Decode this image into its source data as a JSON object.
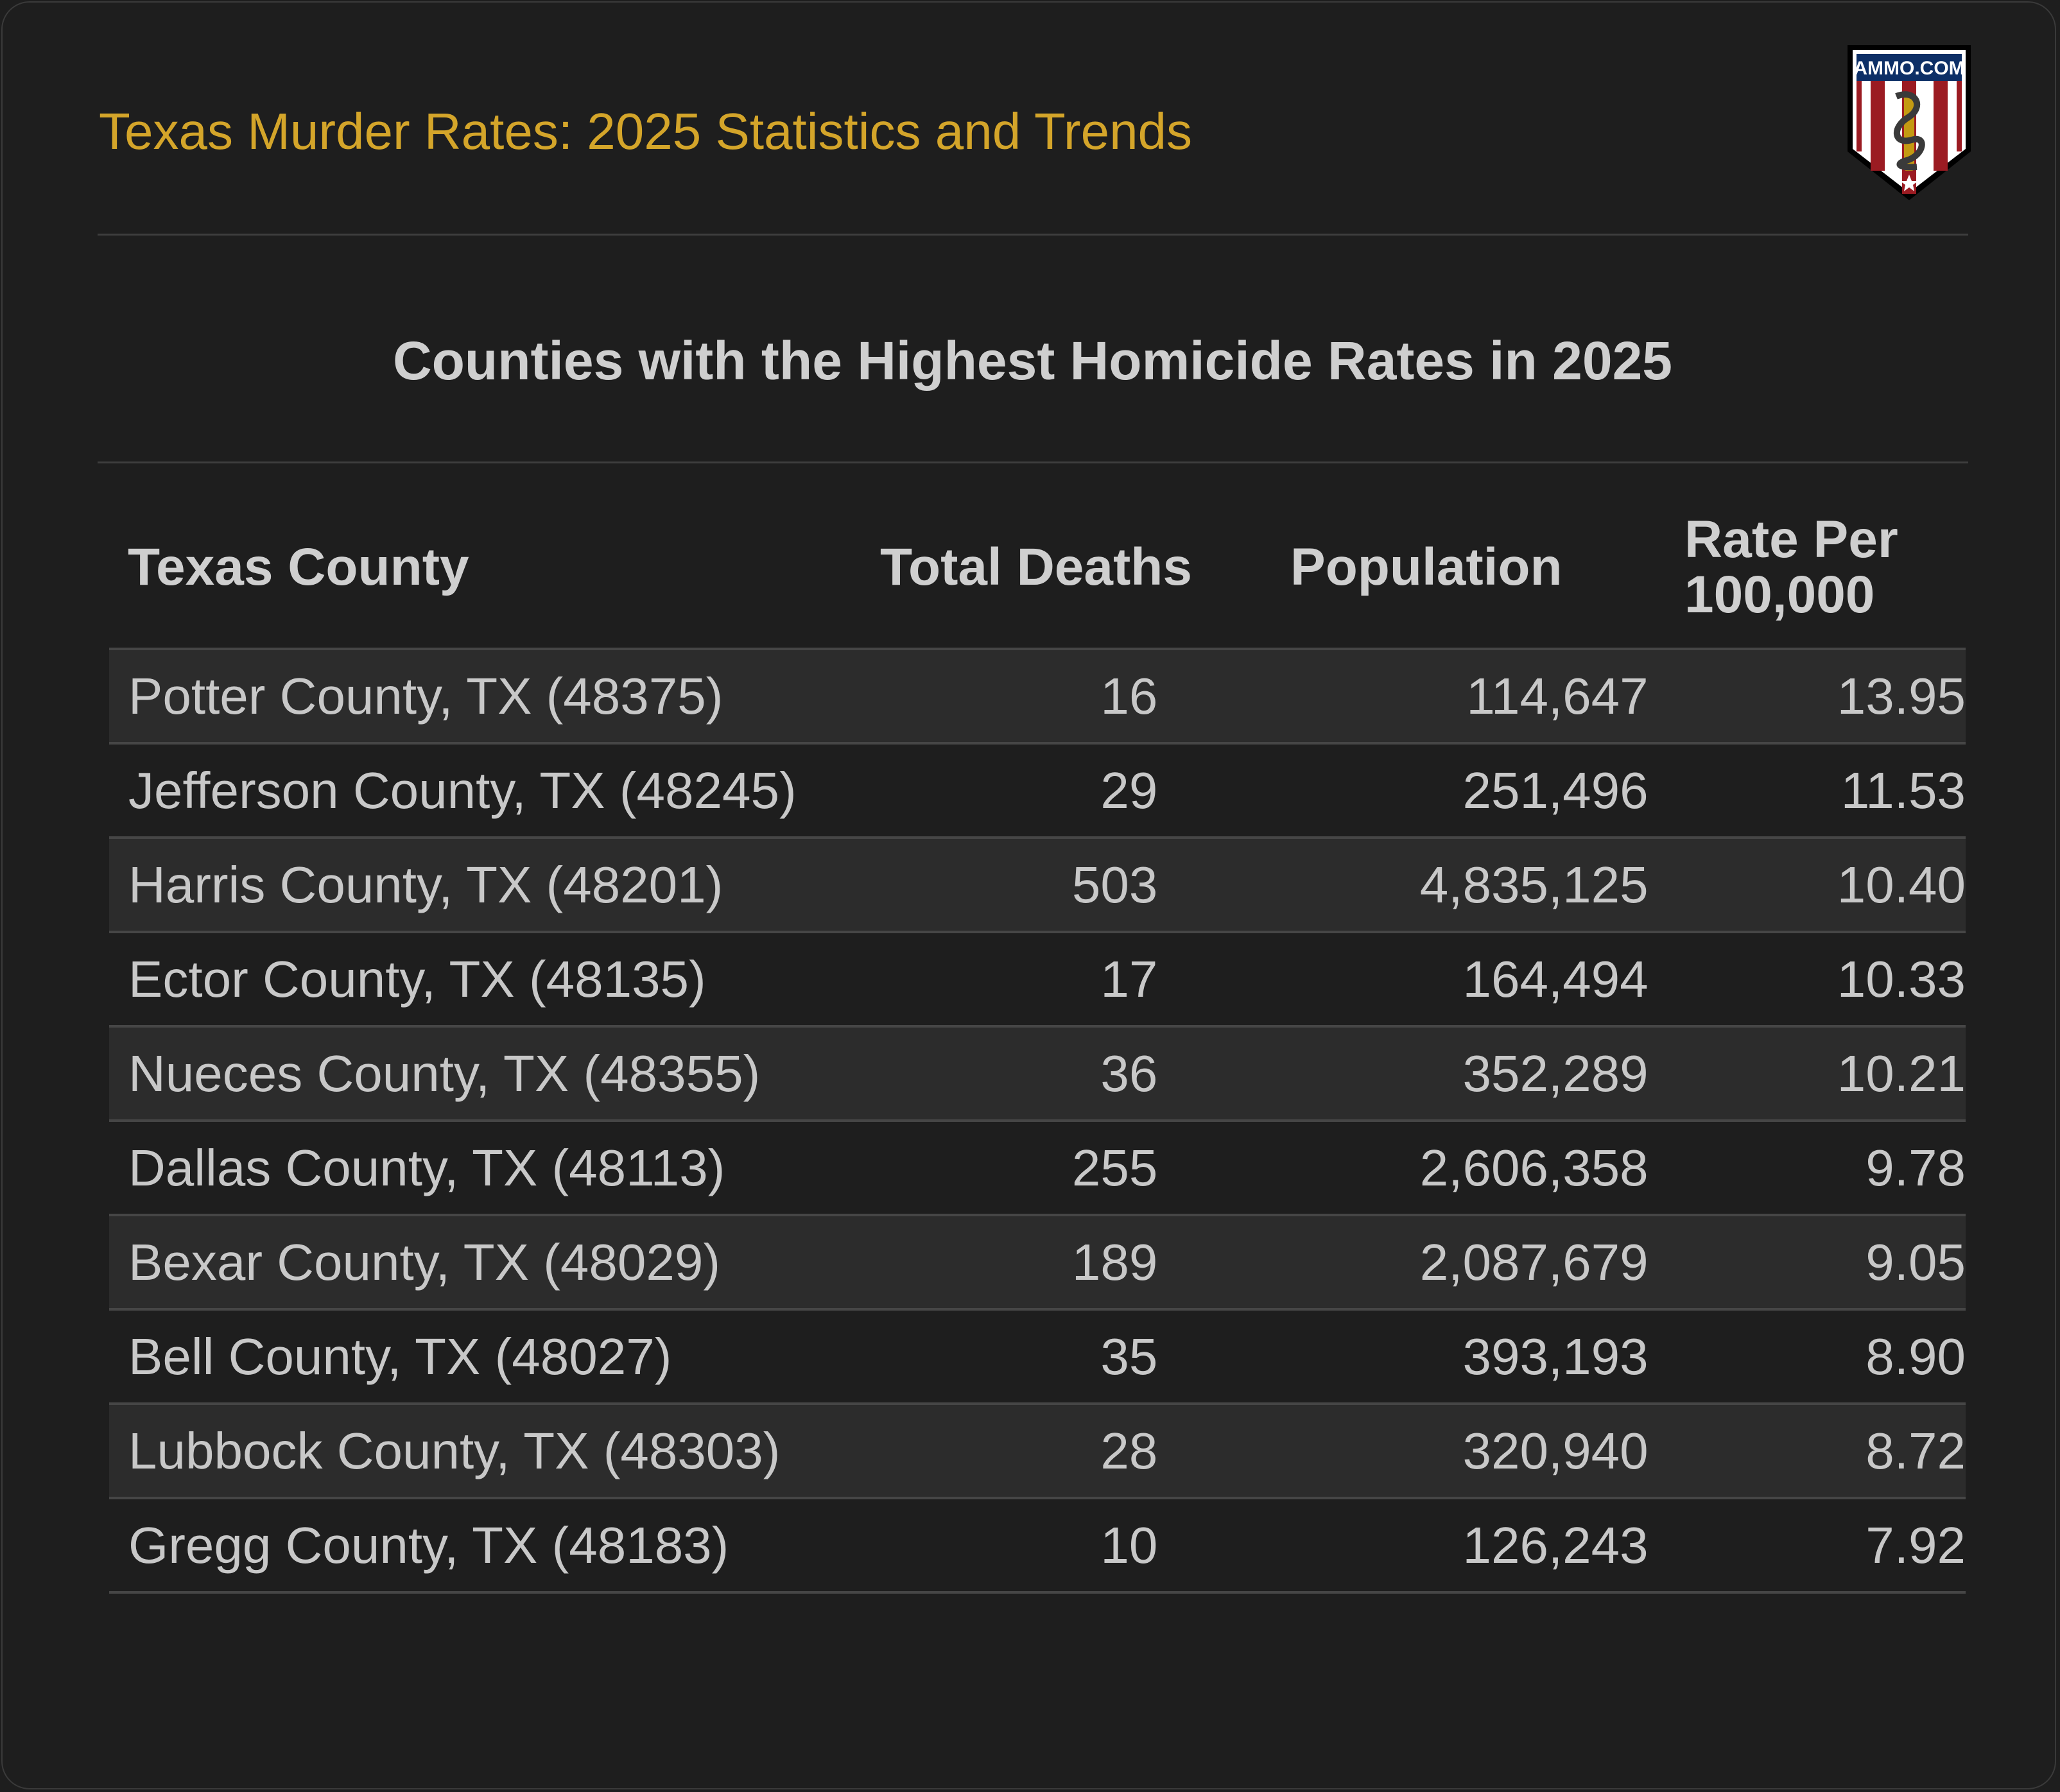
{
  "header": {
    "title": "Texas Murder Rates: 2025 Statistics and Trends",
    "logo_text": "AMMO.COM"
  },
  "table": {
    "title": "Counties with the Highest Homicide Rates in 2025",
    "columns": [
      "Texas County",
      "Total Deaths",
      "Population",
      "Rate Per 100,000"
    ],
    "rows": [
      [
        "Potter County, TX (48375)",
        "16",
        "114,647",
        "13.95"
      ],
      [
        "Jefferson County, TX (48245)",
        "29",
        "251,496",
        "11.53"
      ],
      [
        "Harris County, TX (48201)",
        "503",
        "4,835,125",
        "10.40"
      ],
      [
        "Ector County, TX (48135)",
        "17",
        "164,494",
        "10.33"
      ],
      [
        "Nueces County, TX (48355)",
        "36",
        "352,289",
        "10.21"
      ],
      [
        "Dallas County, TX (48113)",
        "255",
        "2,606,358",
        "9.78"
      ],
      [
        "Bexar County, TX (48029)",
        "189",
        "2,087,679",
        "9.05"
      ],
      [
        "Bell County, TX (48027)",
        "35",
        "393,193",
        "8.90"
      ],
      [
        "Lubbock County, TX (48303)",
        "28",
        "320,940",
        "8.72"
      ],
      [
        "Gregg County, TX (48183)",
        "10",
        "126,243",
        "7.92"
      ]
    ]
  },
  "colors": {
    "title": "#d4a52a",
    "background": "#1e1e1e",
    "row_alt": "#2c2c2c",
    "text": "#c8c8c8"
  }
}
